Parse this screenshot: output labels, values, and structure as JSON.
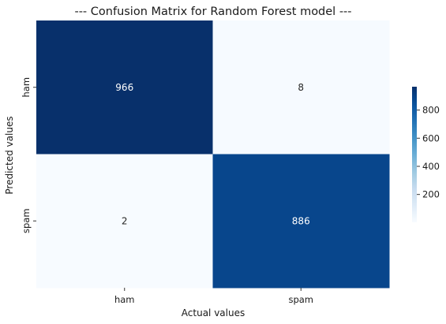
{
  "chart_data": {
    "type": "heatmap",
    "title": "--- Confusion Matrix for Random Forest model ---",
    "xlabel": "Actual values",
    "ylabel": "Predicted values",
    "x_categories": [
      "ham",
      "spam"
    ],
    "y_categories": [
      "ham",
      "spam"
    ],
    "values": [
      [
        966,
        8
      ],
      [
        2,
        886
      ]
    ],
    "colormap": "Blues",
    "colorbar": {
      "min": 2,
      "max": 966,
      "ticks": [
        200,
        400,
        600,
        800
      ]
    },
    "grid": false
  }
}
